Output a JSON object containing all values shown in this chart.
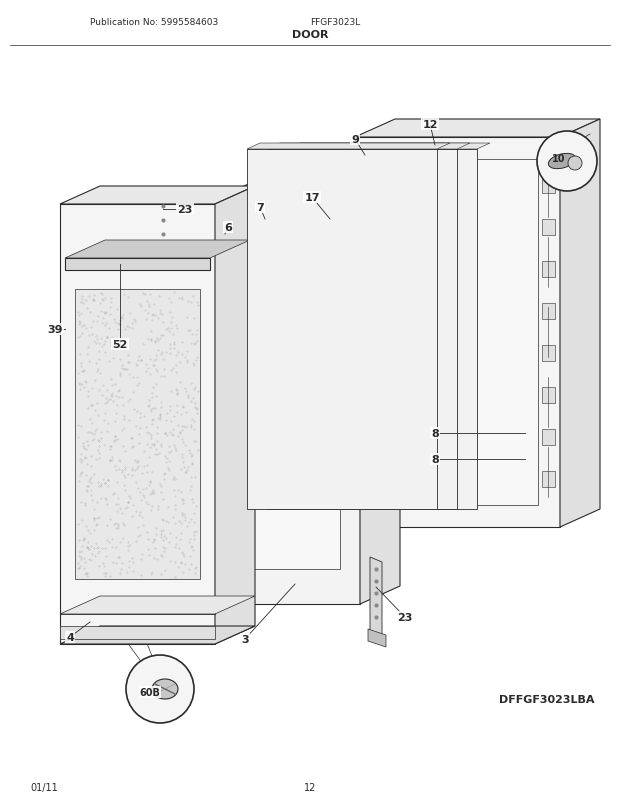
{
  "title": "DOOR",
  "pub_no": "Publication No: 5995584603",
  "model": "FFGF3023L",
  "diagram_id": "DFFGF3023LBA",
  "date": "01/11",
  "page": "12",
  "bg_color": "#ffffff",
  "lc": "#2a2a2a",
  "fc_light": "#f0f0f0",
  "fc_white": "#ffffff",
  "fc_gray": "#d8d8d8",
  "fc_darkgray": "#b0b0b0"
}
